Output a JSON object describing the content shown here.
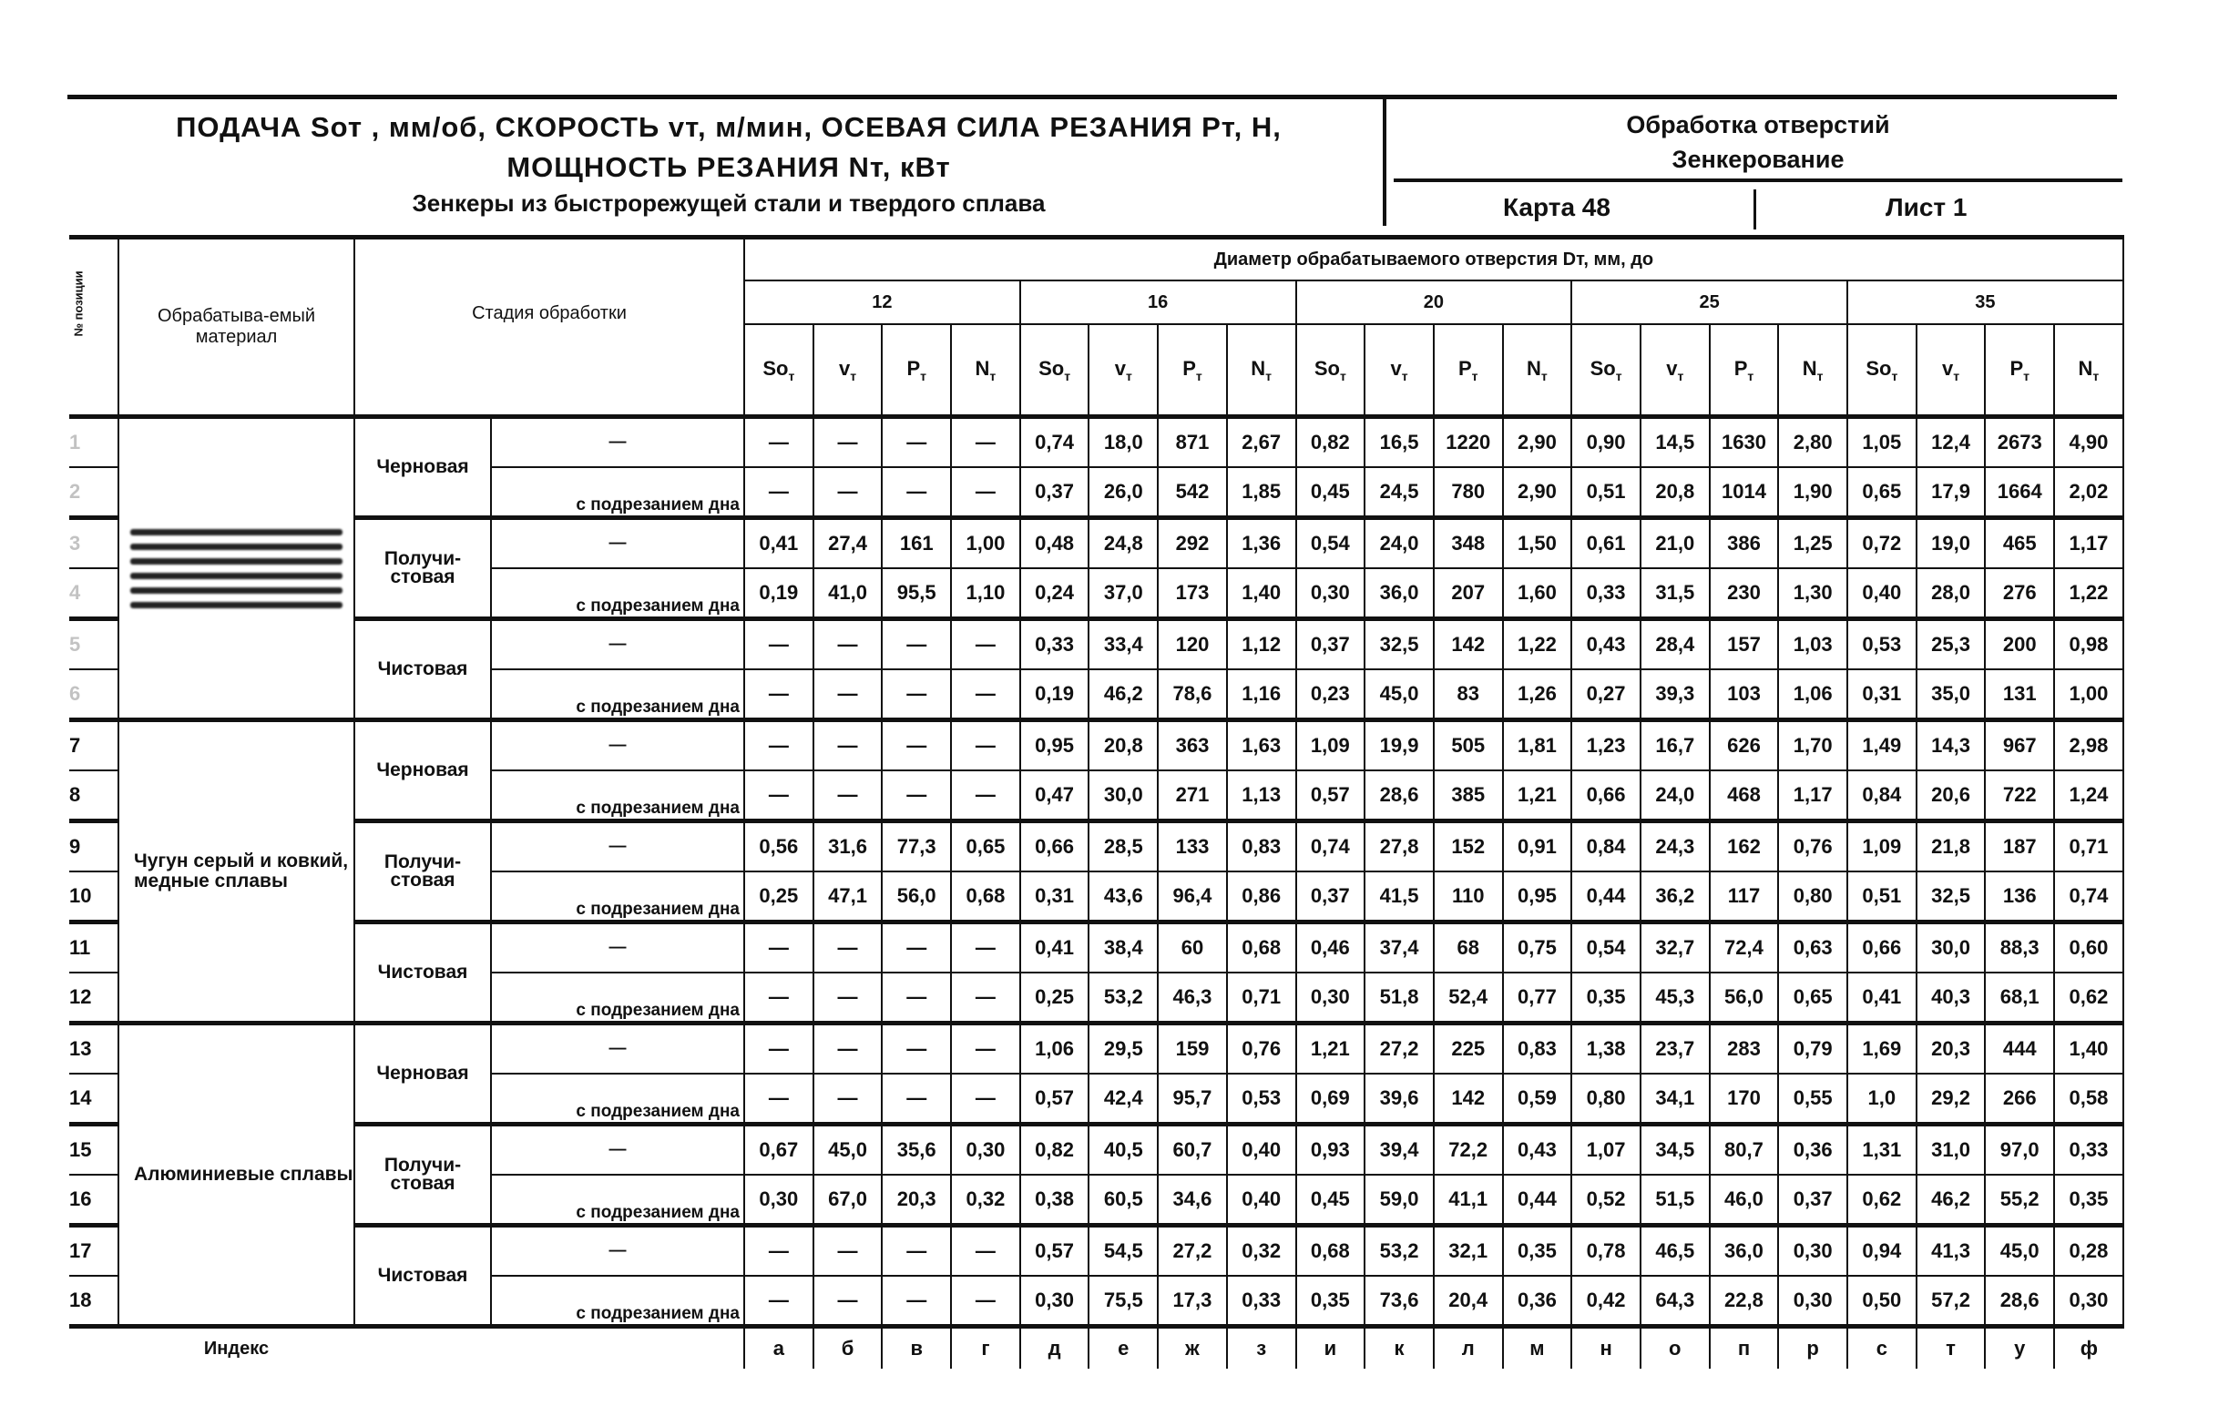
{
  "header": {
    "title_line1": "ПОДАЧА Sот , мм/об, СКОРОСТЬ vт, м/мин, ОСЕВАЯ СИЛА РЕЗАНИЯ Pт, Н,",
    "title_line2": "МОЩНОСТЬ РЕЗАНИЯ Nт, кВт",
    "subtitle": "Зенкеры из быстрорежущей стали и твердого сплава",
    "section": "Обработка отверстий",
    "operation": "Зенкерование",
    "card": "Карта 48",
    "sheet": "Лист 1"
  },
  "table": {
    "col_no": "№ позиции",
    "col_material": "Обрабатыва-емый материал",
    "col_stage": "Стадия обработки",
    "diameter_label": "Диаметр обрабатываемого отверстия Dт, мм, до",
    "diameters": [
      "12",
      "16",
      "20",
      "25",
      "35"
    ],
    "params": [
      "Sот",
      "vт",
      "Pт",
      "Nт"
    ],
    "index_label": "Индекс",
    "index": [
      "а",
      "б",
      "в",
      "г",
      "д",
      "е",
      "ж",
      "з",
      "и",
      "к",
      "л",
      "м",
      "н",
      "о",
      "п",
      "р",
      "с",
      "т",
      "у",
      "ф"
    ],
    "groups": [
      {
        "material": "",
        "stages": [
          "Черновая",
          "Получи-стовая",
          "Чистовая"
        ]
      },
      {
        "material": "Чугун серый и ковкий, медные сплавы",
        "stages": [
          "Черновая",
          "Получи-стовая",
          "Чистовая"
        ]
      },
      {
        "material": "Алюминиевые сплавы",
        "stages": [
          "Черновая",
          "Получи-стовая",
          "Чистовая"
        ]
      }
    ],
    "substages": [
      "—",
      "с подрезанием дна"
    ],
    "rows": [
      {
        "no": "1",
        "v": [
          "—",
          "—",
          "—",
          "—",
          "0,74",
          "18,0",
          "871",
          "2,67",
          "0,82",
          "16,5",
          "1220",
          "2,90",
          "0,90",
          "14,5",
          "1630",
          "2,80",
          "1,05",
          "12,4",
          "2673",
          "4,90"
        ]
      },
      {
        "no": "2",
        "v": [
          "—",
          "—",
          "—",
          "—",
          "0,37",
          "26,0",
          "542",
          "1,85",
          "0,45",
          "24,5",
          "780",
          "2,90",
          "0,51",
          "20,8",
          "1014",
          "1,90",
          "0,65",
          "17,9",
          "1664",
          "2,02"
        ]
      },
      {
        "no": "3",
        "v": [
          "0,41",
          "27,4",
          "161",
          "1,00",
          "0,48",
          "24,8",
          "292",
          "1,36",
          "0,54",
          "24,0",
          "348",
          "1,50",
          "0,61",
          "21,0",
          "386",
          "1,25",
          "0,72",
          "19,0",
          "465",
          "1,17"
        ]
      },
      {
        "no": "4",
        "v": [
          "0,19",
          "41,0",
          "95,5",
          "1,10",
          "0,24",
          "37,0",
          "173",
          "1,40",
          "0,30",
          "36,0",
          "207",
          "1,60",
          "0,33",
          "31,5",
          "230",
          "1,30",
          "0,40",
          "28,0",
          "276",
          "1,22"
        ]
      },
      {
        "no": "5",
        "v": [
          "—",
          "—",
          "—",
          "—",
          "0,33",
          "33,4",
          "120",
          "1,12",
          "0,37",
          "32,5",
          "142",
          "1,22",
          "0,43",
          "28,4",
          "157",
          "1,03",
          "0,53",
          "25,3",
          "200",
          "0,98"
        ]
      },
      {
        "no": "6",
        "v": [
          "—",
          "—",
          "—",
          "—",
          "0,19",
          "46,2",
          "78,6",
          "1,16",
          "0,23",
          "45,0",
          "83",
          "1,26",
          "0,27",
          "39,3",
          "103",
          "1,06",
          "0,31",
          "35,0",
          "131",
          "1,00"
        ]
      },
      {
        "no": "7",
        "v": [
          "—",
          "—",
          "—",
          "—",
          "0,95",
          "20,8",
          "363",
          "1,63",
          "1,09",
          "19,9",
          "505",
          "1,81",
          "1,23",
          "16,7",
          "626",
          "1,70",
          "1,49",
          "14,3",
          "967",
          "2,98"
        ]
      },
      {
        "no": "8",
        "v": [
          "—",
          "—",
          "—",
          "—",
          "0,47",
          "30,0",
          "271",
          "1,13",
          "0,57",
          "28,6",
          "385",
          "1,21",
          "0,66",
          "24,0",
          "468",
          "1,17",
          "0,84",
          "20,6",
          "722",
          "1,24"
        ]
      },
      {
        "no": "9",
        "v": [
          "0,56",
          "31,6",
          "77,3",
          "0,65",
          "0,66",
          "28,5",
          "133",
          "0,83",
          "0,74",
          "27,8",
          "152",
          "0,91",
          "0,84",
          "24,3",
          "162",
          "0,76",
          "1,09",
          "21,8",
          "187",
          "0,71"
        ]
      },
      {
        "no": "10",
        "v": [
          "0,25",
          "47,1",
          "56,0",
          "0,68",
          "0,31",
          "43,6",
          "96,4",
          "0,86",
          "0,37",
          "41,5",
          "110",
          "0,95",
          "0,44",
          "36,2",
          "117",
          "0,80",
          "0,51",
          "32,5",
          "136",
          "0,74"
        ]
      },
      {
        "no": "11",
        "v": [
          "—",
          "—",
          "—",
          "—",
          "0,41",
          "38,4",
          "60",
          "0,68",
          "0,46",
          "37,4",
          "68",
          "0,75",
          "0,54",
          "32,7",
          "72,4",
          "0,63",
          "0,66",
          "30,0",
          "88,3",
          "0,60"
        ]
      },
      {
        "no": "12",
        "v": [
          "—",
          "—",
          "—",
          "—",
          "0,25",
          "53,2",
          "46,3",
          "0,71",
          "0,30",
          "51,8",
          "52,4",
          "0,77",
          "0,35",
          "45,3",
          "56,0",
          "0,65",
          "0,41",
          "40,3",
          "68,1",
          "0,62"
        ]
      },
      {
        "no": "13",
        "v": [
          "—",
          "—",
          "—",
          "—",
          "1,06",
          "29,5",
          "159",
          "0,76",
          "1,21",
          "27,2",
          "225",
          "0,83",
          "1,38",
          "23,7",
          "283",
          "0,79",
          "1,69",
          "20,3",
          "444",
          "1,40"
        ]
      },
      {
        "no": "14",
        "v": [
          "—",
          "—",
          "—",
          "—",
          "0,57",
          "42,4",
          "95,7",
          "0,53",
          "0,69",
          "39,6",
          "142",
          "0,59",
          "0,80",
          "34,1",
          "170",
          "0,55",
          "1,0",
          "29,2",
          "266",
          "0,58"
        ]
      },
      {
        "no": "15",
        "v": [
          "0,67",
          "45,0",
          "35,6",
          "0,30",
          "0,82",
          "40,5",
          "60,7",
          "0,40",
          "0,93",
          "39,4",
          "72,2",
          "0,43",
          "1,07",
          "34,5",
          "80,7",
          "0,36",
          "1,31",
          "31,0",
          "97,0",
          "0,33"
        ]
      },
      {
        "no": "16",
        "v": [
          "0,30",
          "67,0",
          "20,3",
          "0,32",
          "0,38",
          "60,5",
          "34,6",
          "0,40",
          "0,45",
          "59,0",
          "41,1",
          "0,44",
          "0,52",
          "51,5",
          "46,0",
          "0,37",
          "0,62",
          "46,2",
          "55,2",
          "0,35"
        ]
      },
      {
        "no": "17",
        "v": [
          "—",
          "—",
          "—",
          "—",
          "0,57",
          "54,5",
          "27,2",
          "0,32",
          "0,68",
          "53,2",
          "32,1",
          "0,35",
          "0,78",
          "46,5",
          "36,0",
          "0,30",
          "0,94",
          "41,3",
          "45,0",
          "0,28"
        ]
      },
      {
        "no": "18",
        "v": [
          "—",
          "—",
          "—",
          "—",
          "0,30",
          "75,5",
          "17,3",
          "0,33",
          "0,35",
          "73,6",
          "20,4",
          "0,36",
          "0,42",
          "64,3",
          "22,8",
          "0,30",
          "0,50",
          "57,2",
          "28,6",
          "0,30"
        ]
      }
    ]
  }
}
